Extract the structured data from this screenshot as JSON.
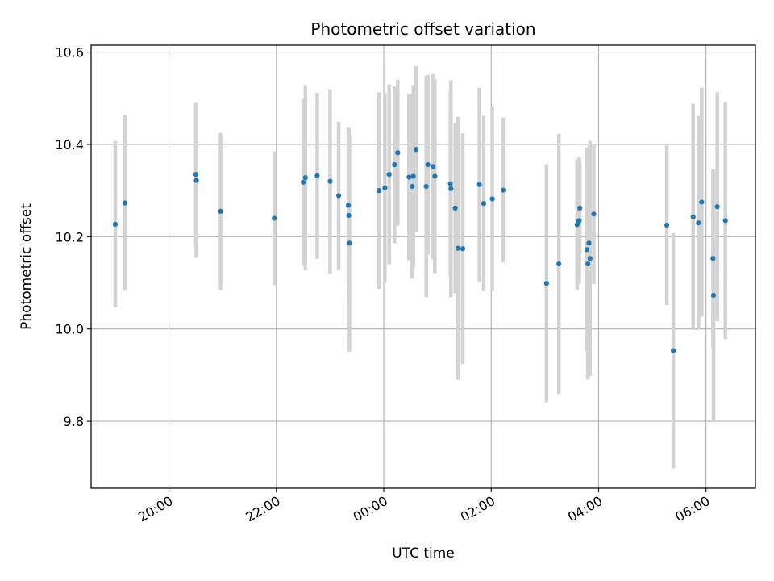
{
  "chart_data": {
    "type": "scatter",
    "title": "Photometric offset variation",
    "xlabel": "UTC time",
    "ylabel": "Photometric offset",
    "x_tick_labels": [
      "20:00",
      "22:00",
      "00:00",
      "02:00",
      "04:00",
      "06:00"
    ],
    "x_tick_hours": [
      20,
      22,
      24,
      26,
      28,
      30
    ],
    "y_tick_labels": [
      "9.8",
      "10.0",
      "10.2",
      "10.4",
      "10.6"
    ],
    "y_tick_values": [
      9.8,
      10.0,
      10.2,
      10.4,
      10.6
    ],
    "xlim_hours": [
      18.55,
      30.92
    ],
    "ylim": [
      9.655,
      10.615
    ],
    "grid": true,
    "colors": {
      "points": "#1f77b4",
      "errorbars": "#d3d3d3",
      "grid": "#b0b0b0"
    },
    "series": [
      {
        "x_hours": [
          19.0,
          19.18,
          20.5,
          20.51,
          20.96,
          21.96,
          22.5,
          22.54,
          22.76,
          23.0,
          23.16,
          23.34,
          23.35,
          23.36,
          23.91,
          24.02,
          24.1,
          24.2,
          24.26,
          24.47,
          24.53,
          24.55,
          24.6,
          24.79,
          24.82,
          24.92,
          24.95,
          25.24,
          25.25,
          25.33,
          25.38,
          25.47,
          25.78,
          25.86,
          26.02,
          26.22,
          27.03,
          27.26,
          27.6,
          27.62,
          27.64,
          27.65,
          27.78,
          27.8,
          27.82,
          27.84,
          27.91,
          29.27,
          29.39,
          29.76,
          29.86,
          29.92,
          30.13,
          30.14,
          30.21,
          30.36
        ],
        "y": [
          10.227,
          10.273,
          10.335,
          10.322,
          10.255,
          10.24,
          10.318,
          10.328,
          10.332,
          10.32,
          10.289,
          10.268,
          10.246,
          10.186,
          10.3,
          10.306,
          10.335,
          10.356,
          10.382,
          10.329,
          10.309,
          10.331,
          10.389,
          10.309,
          10.356,
          10.352,
          10.331,
          10.315,
          10.304,
          10.262,
          10.175,
          10.174,
          10.313,
          10.272,
          10.282,
          10.301,
          10.099,
          10.141,
          10.226,
          10.232,
          10.235,
          10.262,
          10.172,
          10.141,
          10.186,
          10.153,
          10.249,
          10.225,
          9.953,
          10.243,
          10.23,
          10.275,
          10.153,
          10.073,
          10.265,
          10.235
        ],
        "yerr": [
          0.18,
          0.19,
          0.155,
          0.168,
          0.17,
          0.145,
          0.18,
          0.2,
          0.18,
          0.2,
          0.16,
          0.168,
          0.19,
          0.235,
          0.213,
          0.205,
          0.195,
          0.17,
          0.158,
          0.18,
          0.2,
          0.198,
          0.18,
          0.24,
          0.195,
          0.2,
          0.21,
          0.2,
          0.235,
          0.185,
          0.285,
          0.25,
          0.21,
          0.19,
          0.2,
          0.157,
          0.258,
          0.282,
          0.142,
          0.125,
          0.137,
          0.1,
          0.22,
          0.25,
          0.21,
          0.255,
          0.152,
          0.173,
          0.255,
          0.245,
          0.232,
          0.248,
          0.193,
          0.273,
          0.248,
          0.257
        ]
      }
    ]
  }
}
